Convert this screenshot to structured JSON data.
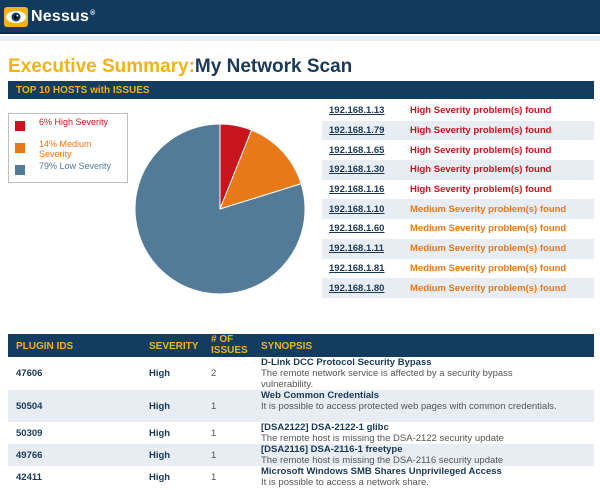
{
  "header": {
    "logo_text": "Nessus",
    "logo_tm": "®"
  },
  "page": {
    "title_prefix": "Executive Summary:",
    "title_scan": "My Network Scan"
  },
  "hosts_section": {
    "header": "TOP 10 HOSTS with ISSUES",
    "legend": [
      {
        "label": "6% High Severity",
        "color": "#c8141c"
      },
      {
        "label": "14% Medium Severity",
        "color": "#e8791a"
      },
      {
        "label": "79% Low Severity",
        "color": "#537b97"
      }
    ],
    "hosts": [
      {
        "ip": "192.168.1.13",
        "desc": "High Severity problem(s) found",
        "severity": "high"
      },
      {
        "ip": "192.168.1.79",
        "desc": "High Severity problem(s) found",
        "severity": "high"
      },
      {
        "ip": "192.168.1.65",
        "desc": "High Severity problem(s) found",
        "severity": "high"
      },
      {
        "ip": "192.168.1.30",
        "desc": "High Severity problem(s) found",
        "severity": "high"
      },
      {
        "ip": "192.168.1.16",
        "desc": "High Severity problem(s) found",
        "severity": "high"
      },
      {
        "ip": "192.168.1.10",
        "desc": "Medium Severity problem(s) found",
        "severity": "medium"
      },
      {
        "ip": "192.168.1.60",
        "desc": "Medium Severity problem(s) found",
        "severity": "medium"
      },
      {
        "ip": "192.168.1.11",
        "desc": "Medium Severity problem(s) found",
        "severity": "medium"
      },
      {
        "ip": "192.168.1.81",
        "desc": "Medium Severity problem(s) found",
        "severity": "medium"
      },
      {
        "ip": "192.168.1.80",
        "desc": "Medium Severity problem(s) found",
        "severity": "medium"
      }
    ]
  },
  "chart_data": {
    "type": "pie",
    "labels": [
      "6% High Severity",
      "14% Medium Severity",
      "79% Low Severity"
    ],
    "values": [
      6,
      14,
      79
    ],
    "colors": [
      "#c8141c",
      "#e8791a",
      "#537b97"
    ],
    "title": "",
    "legend_position": "left"
  },
  "plugins_section": {
    "columns": {
      "plugin_ids": "PLUGIN IDS",
      "severity": "SEVERITY",
      "count_line1": "# OF",
      "count_line2": "ISSUES",
      "synopsis": "SYNOPSIS"
    },
    "rows": [
      {
        "id": "47606",
        "severity": "High",
        "count": "2",
        "title": "D-Link DCC Protocol Security Bypass",
        "text": "The remote network service is affected by a security bypass vulnerability."
      },
      {
        "id": "50504",
        "severity": "High",
        "count": "1",
        "title": "Web Common Credentials",
        "text": "It is possible to access protected web pages with common credentials."
      },
      {
        "id": "50309",
        "severity": "High",
        "count": "1",
        "title": "[DSA2122] DSA-2122-1 glibc",
        "text": "The remote host is missing the DSA-2122 security update"
      },
      {
        "id": "49766",
        "severity": "High",
        "count": "1",
        "title": "[DSA2116] DSA-2116-1 freetype",
        "text": "The remote host is missing the DSA-2116 security update"
      },
      {
        "id": "42411",
        "severity": "High",
        "count": "1",
        "title": "Microsoft Windows SMB Shares Unprivileged Access",
        "text": "It is possible to access a network share."
      }
    ]
  }
}
